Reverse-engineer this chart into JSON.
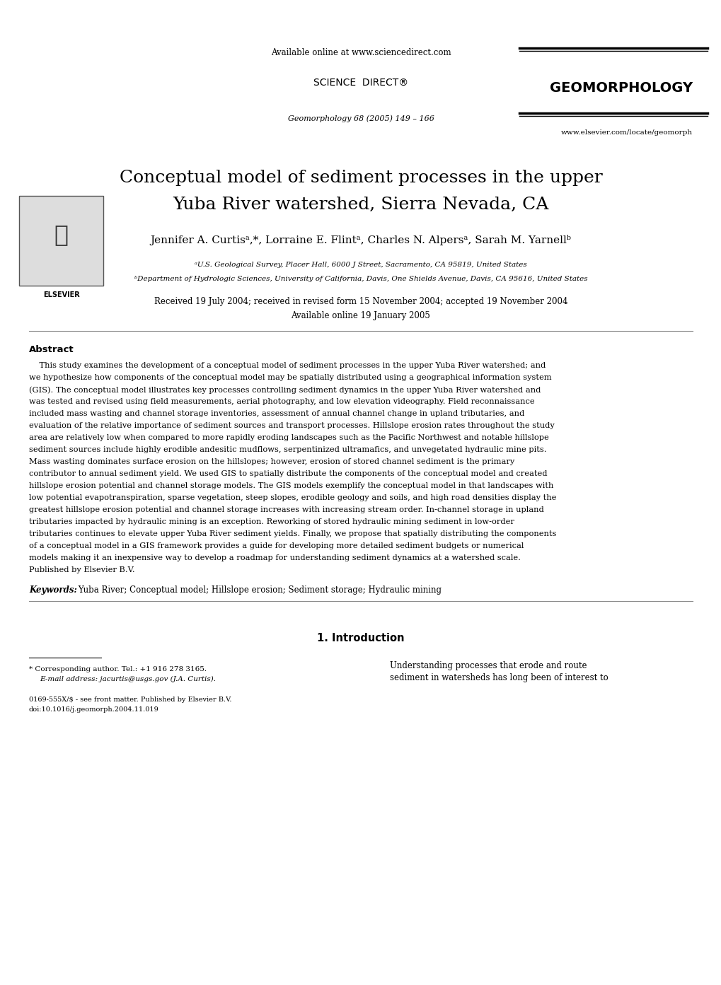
{
  "bg_color": "#ffffff",
  "text_color": "#000000",
  "page_width": 10.2,
  "page_height": 13.93,
  "header": {
    "available_online": "Available online at www.sciencedirect.com",
    "sciencedirect_logo": "SCIENCE  DIRECT®",
    "journal_ref": "Geomorphology 68 (2005) 149 – 166",
    "journal_name": "GEOMORPHOLOGY",
    "website": "www.elsevier.com/locate/geomorph",
    "elsevier_label": "ELSEVIER"
  },
  "title_line1": "Conceptual model of sediment processes in the upper",
  "title_line2": "Yuba River watershed, Sierra Nevada, CA",
  "authors": "Jennifer A. Curtisᵃ,*, Lorraine E. Flintᵃ, Charles N. Alpersᵃ, Sarah M. Yarnellᵇ",
  "affil_a": "ᵃU.S. Geological Survey, Placer Hall, 6000 J Street, Sacramento, CA 95819, United States",
  "affil_b": "ᵇDepartment of Hydrologic Sciences, University of California, Davis, One Shields Avenue, Davis, CA 95616, United States",
  "received": "Received 19 July 2004; received in revised form 15 November 2004; accepted 19 November 2004",
  "available_online_date": "Available online 19 January 2005",
  "abstract_label": "Abstract",
  "abstract_text": "This study examines the development of a conceptual model of sediment processes in the upper Yuba River watershed; and we hypothesize how components of the conceptual model may be spatially distributed using a geographical information system (GIS). The conceptual model illustrates key processes controlling sediment dynamics in the upper Yuba River watershed and was tested and revised using field measurements, aerial photography, and low elevation videography. Field reconnaissance included mass wasting and channel storage inventories, assessment of annual channel change in upland tributaries, and evaluation of the relative importance of sediment sources and transport processes. Hillslope erosion rates throughout the study area are relatively low when compared to more rapidly eroding landscapes such as the Pacific Northwest and notable hillslope sediment sources include highly erodible andesitic mudflows, serpentinized ultramafics, and unvegetated hydraulic mine pits. Mass wasting dominates surface erosion on the hillslopes; however, erosion of stored channel sediment is the primary contributor to annual sediment yield. We used GIS to spatially distribute the components of the conceptual model and created hillslope erosion potential and channel storage models. The GIS models exemplify the conceptual model in that landscapes with low potential evapotranspiration, sparse vegetation, steep slopes, erodible geology and soils, and high road densities display the greatest hillslope erosion potential and channel storage increases with increasing stream order. In-channel storage in upland tributaries impacted by hydraulic mining is an exception. Reworking of stored hydraulic mining sediment in low-order tributaries continues to elevate upper Yuba River sediment yields. Finally, we propose that spatially distributing the components of a conceptual model in a GIS framework provides a guide for developing more detailed sediment budgets or numerical models making it an inexpensive way to develop a roadmap for understanding sediment dynamics at a watershed scale.\nPublished by Elsevier B.V.",
  "keywords_label": "Keywords:",
  "keywords_text": " Yuba River; Conceptual model; Hillslope erosion; Sediment storage; Hydraulic mining",
  "section1_title": "1. Introduction",
  "intro_text": "Understanding processes that erode and route\nsediment in watersheds has long been of interest to",
  "footnote_line1": "* Corresponding author. Tel.: +1 916 278 3165.",
  "footnote_line2": "E-mail address: jacurtis@usgs.gov (J.A. Curtis).",
  "footer_line1": "0169-555X/$ - see front matter. Published by Elsevier B.V.",
  "footer_line2": "doi:10.1016/j.geomorph.2004.11.019"
}
